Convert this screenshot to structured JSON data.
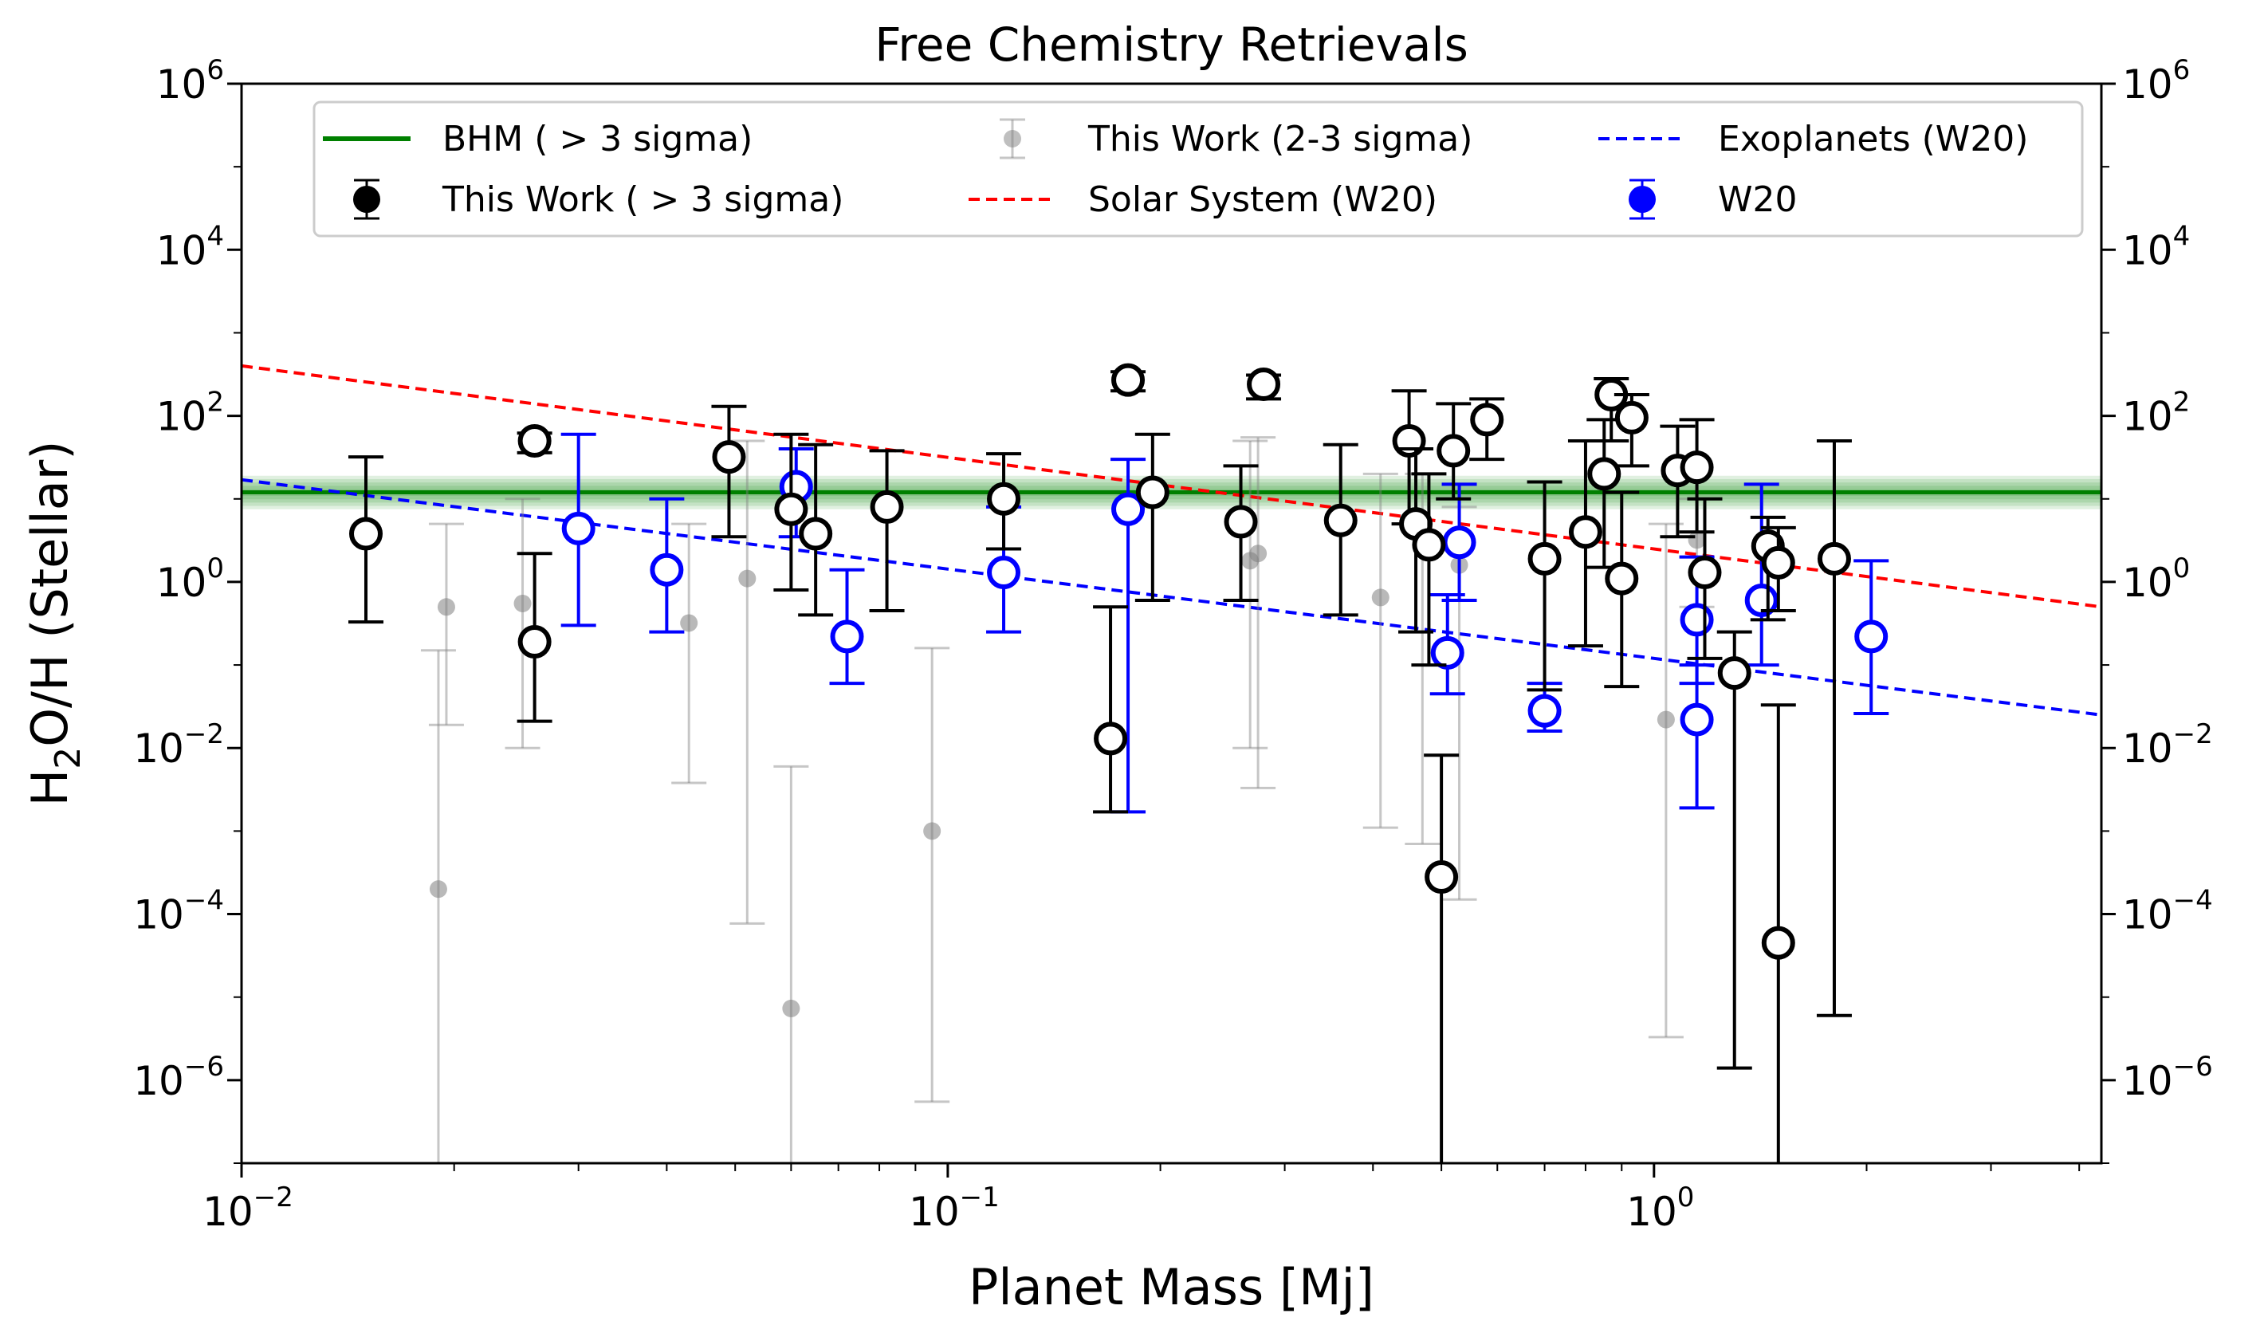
{
  "chart_data": {
    "type": "scatter",
    "title": "Free Chemistry Retrievals",
    "xlabel": "Planet Mass [Mj]",
    "ylabel_parts": {
      "base": "H",
      "sub": "2",
      "rest": "O/H (Stellar)"
    },
    "x_scale": "log",
    "y_scale": "log",
    "xlim": [
      0.01,
      4.3
    ],
    "ylim": [
      1e-07,
      1000000.0
    ],
    "x_ticks": [
      {
        "value": 0.01,
        "base": "10",
        "exp": "−2"
      },
      {
        "value": 0.1,
        "base": "10",
        "exp": "−1"
      },
      {
        "value": 1,
        "base": "10",
        "exp": "0"
      }
    ],
    "y_ticks": [
      {
        "value": 1e-06,
        "base": "10",
        "exp": "−6"
      },
      {
        "value": 0.0001,
        "base": "10",
        "exp": "−4"
      },
      {
        "value": 0.01,
        "base": "10",
        "exp": "−2"
      },
      {
        "value": 1,
        "base": "10",
        "exp": "0"
      },
      {
        "value": 100.0,
        "base": "10",
        "exp": "2"
      },
      {
        "value": 10000.0,
        "base": "10",
        "exp": "4"
      },
      {
        "value": 1000000.0,
        "base": "10",
        "exp": "6"
      }
    ],
    "right_axis_mirror": true,
    "legend": {
      "placement": "top",
      "entries": [
        {
          "label": "BHM ( > 3 sigma)",
          "kind": "line",
          "color": "#008000"
        },
        {
          "label": "This Work ( > 3 sigma)",
          "kind": "errorbar",
          "color": "#000000"
        },
        {
          "label": "This Work (2-3 sigma)",
          "kind": "errorbar-faint",
          "color": "#808080"
        },
        {
          "label": "Solar System (W20)",
          "kind": "dashed",
          "color": "#ff0000"
        },
        {
          "label": "Exoplanets (W20)",
          "kind": "dashed",
          "color": "#0000ff"
        },
        {
          "label": "W20",
          "kind": "errorbar",
          "color": "#0000ff"
        }
      ]
    },
    "bhm_line": {
      "value": 12,
      "band_low": 7.5,
      "band_high": 19,
      "color": "#008000"
    },
    "trend_solar_system": {
      "x": [
        0.01,
        4.3
      ],
      "y": [
        400,
        0.5
      ],
      "color": "#ff0000"
    },
    "trend_exoplanets": {
      "x": [
        0.01,
        4.3
      ],
      "y": [
        17,
        0.025
      ],
      "color": "#0000ff"
    },
    "series": [
      {
        "name": "This Work ( > 3 sigma)",
        "color": "#000000",
        "points": [
          {
            "x": 0.015,
            "y": 3.8,
            "lo": 0.33,
            "hi": 32
          },
          {
            "x": 0.026,
            "y": 50,
            "lo": 36,
            "hi": 62
          },
          {
            "x": 0.026,
            "y": 0.19,
            "lo": 0.021,
            "hi": 2.2
          },
          {
            "x": 0.049,
            "y": 32,
            "lo": 3.5,
            "hi": 130
          },
          {
            "x": 0.06,
            "y": 7.5,
            "lo": 0.8,
            "hi": 60
          },
          {
            "x": 0.065,
            "y": 3.8,
            "lo": 0.4,
            "hi": 45
          },
          {
            "x": 0.082,
            "y": 8,
            "lo": 0.45,
            "hi": 38
          },
          {
            "x": 0.12,
            "y": 10,
            "lo": 2.5,
            "hi": 35
          },
          {
            "x": 0.17,
            "y": 0.013,
            "lo": 0.0017,
            "hi": 0.5
          },
          {
            "x": 0.18,
            "y": 270,
            "lo": 200,
            "hi": 340
          },
          {
            "x": 0.195,
            "y": 12,
            "lo": 0.6,
            "hi": 60
          },
          {
            "x": 0.26,
            "y": 5.3,
            "lo": 0.6,
            "hi": 25
          },
          {
            "x": 0.28,
            "y": 240,
            "lo": 160,
            "hi": 310
          },
          {
            "x": 0.36,
            "y": 5.5,
            "lo": 0.4,
            "hi": 45
          },
          {
            "x": 0.45,
            "y": 50,
            "lo": 5,
            "hi": 200
          },
          {
            "x": 0.46,
            "y": 5,
            "lo": 0.25,
            "hi": 40
          },
          {
            "x": 0.48,
            "y": 2.8,
            "lo": 0.1,
            "hi": 20
          },
          {
            "x": 0.5,
            "y": 0.00028,
            "lo": 1e-08,
            "hi": 0.0082
          },
          {
            "x": 0.52,
            "y": 38,
            "lo": 10,
            "hi": 140
          },
          {
            "x": 0.58,
            "y": 90,
            "lo": 30,
            "hi": 160
          },
          {
            "x": 0.7,
            "y": 1.9,
            "lo": 0.05,
            "hi": 16
          },
          {
            "x": 0.8,
            "y": 4,
            "lo": 0.17,
            "hi": 50
          },
          {
            "x": 0.85,
            "y": 20,
            "lo": 1.5,
            "hi": 90
          },
          {
            "x": 0.87,
            "y": 180,
            "lo": 50,
            "hi": 280
          },
          {
            "x": 0.9,
            "y": 1.1,
            "lo": 0.055,
            "hi": 12
          },
          {
            "x": 0.93,
            "y": 95,
            "lo": 25,
            "hi": 180
          },
          {
            "x": 1.08,
            "y": 22,
            "lo": 3.5,
            "hi": 75
          },
          {
            "x": 1.15,
            "y": 24,
            "lo": 4,
            "hi": 90
          },
          {
            "x": 1.18,
            "y": 1.3,
            "lo": 0.12,
            "hi": 10
          },
          {
            "x": 1.3,
            "y": 0.08,
            "lo": 1.4e-06,
            "hi": 0.25
          },
          {
            "x": 1.45,
            "y": 2.7,
            "lo": 0.35,
            "hi": 6
          },
          {
            "x": 1.5,
            "y": 1.7,
            "lo": 0.45,
            "hi": 4.5
          },
          {
            "x": 1.5,
            "y": 4.5e-05,
            "lo": 1e-08,
            "hi": 0.033
          },
          {
            "x": 1.8,
            "y": 1.9,
            "lo": 6e-06,
            "hi": 50
          }
        ]
      },
      {
        "name": "This Work (2-3 sigma)",
        "color": "#808080",
        "points": [
          {
            "x": 0.019,
            "y": 0.0002,
            "lo": 1e-08,
            "hi": 0.15
          },
          {
            "x": 0.0195,
            "y": 0.5,
            "lo": 0.019,
            "hi": 5
          },
          {
            "x": 0.025,
            "y": 0.55,
            "lo": 0.01,
            "hi": 10
          },
          {
            "x": 0.043,
            "y": 0.32,
            "lo": 0.0038,
            "hi": 5
          },
          {
            "x": 0.052,
            "y": 1.1,
            "lo": 7.7e-05,
            "hi": 50
          },
          {
            "x": 0.06,
            "y": 7.3e-06,
            "lo": 1e-08,
            "hi": 0.006
          },
          {
            "x": 0.095,
            "y": 0.001,
            "lo": 5.5e-07,
            "hi": 0.16
          },
          {
            "x": 0.268,
            "y": 1.8,
            "lo": 0.01,
            "hi": 50
          },
          {
            "x": 0.275,
            "y": 2.2,
            "lo": 0.0033,
            "hi": 55
          },
          {
            "x": 0.41,
            "y": 0.65,
            "lo": 0.0011,
            "hi": 20
          },
          {
            "x": 0.47,
            "y": 2.5,
            "lo": 0.0007,
            "hi": 20
          },
          {
            "x": 0.53,
            "y": 1.6,
            "lo": 0.00015,
            "hi": 8
          },
          {
            "x": 1.04,
            "y": 0.022,
            "lo": 3.3e-06,
            "hi": 5
          },
          {
            "x": 1.15,
            "y": 3.2,
            "lo": 0.5,
            "hi": 10
          }
        ]
      },
      {
        "name": "W20",
        "color": "#0000ff",
        "points": [
          {
            "x": 0.03,
            "y": 4.4,
            "lo": 0.3,
            "hi": 60
          },
          {
            "x": 0.04,
            "y": 1.4,
            "lo": 0.25,
            "hi": 10
          },
          {
            "x": 0.061,
            "y": 14,
            "lo": 3.5,
            "hi": 40
          },
          {
            "x": 0.072,
            "y": 0.22,
            "lo": 0.06,
            "hi": 1.4
          },
          {
            "x": 0.12,
            "y": 1.3,
            "lo": 0.25,
            "hi": 8
          },
          {
            "x": 0.18,
            "y": 7.5,
            "lo": 0.0017,
            "hi": 30
          },
          {
            "x": 0.51,
            "y": 0.14,
            "lo": 0.045,
            "hi": 0.7
          },
          {
            "x": 0.53,
            "y": 3,
            "lo": 0.6,
            "hi": 15
          },
          {
            "x": 0.7,
            "y": 0.028,
            "lo": 0.016,
            "hi": 0.06
          },
          {
            "x": 1.15,
            "y": 0.35,
            "lo": 0.06,
            "hi": 2
          },
          {
            "x": 1.15,
            "y": 0.022,
            "lo": 0.0019,
            "hi": 0.1
          },
          {
            "x": 1.42,
            "y": 0.6,
            "lo": 0.1,
            "hi": 15
          },
          {
            "x": 2.03,
            "y": 0.22,
            "lo": 0.026,
            "hi": 1.8
          }
        ]
      }
    ]
  }
}
